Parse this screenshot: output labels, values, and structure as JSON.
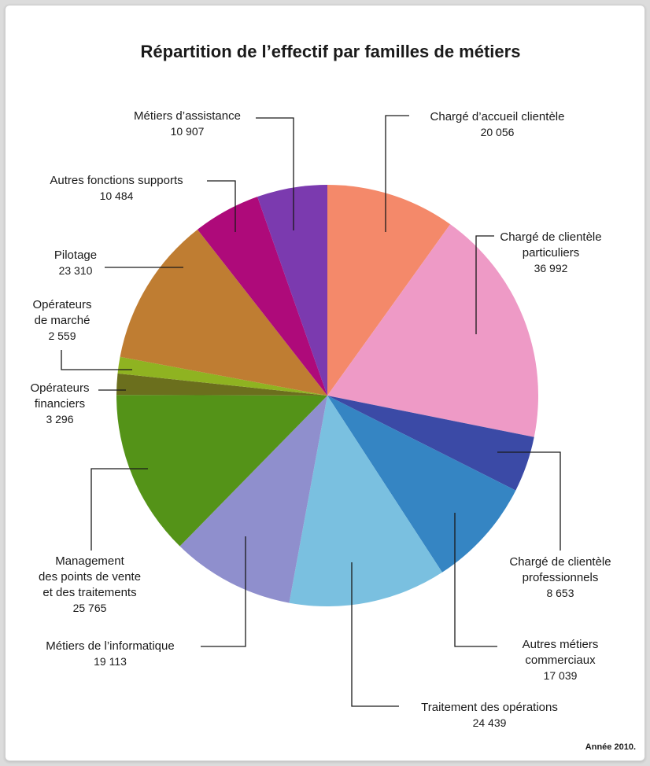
{
  "chart_data": {
    "type": "pie",
    "title": "Répartition de l’effectif par familles de métiers",
    "note": "Année 2010.",
    "slices": [
      {
        "label_lines": [
          "Chargé d’accueil clientèle"
        ],
        "value_text": "20 056",
        "value": 20056,
        "color": "#f4896a"
      },
      {
        "label_lines": [
          "Chargé de clientèle",
          "particuliers"
        ],
        "value_text": "36 992",
        "value": 36992,
        "color": "#ee9ac6"
      },
      {
        "label_lines": [
          "Chargé de clientèle",
          "professionnels"
        ],
        "value_text": "8 653",
        "value": 8653,
        "color": "#3b4aa6"
      },
      {
        "label_lines": [
          "Autres métiers",
          "commerciaux"
        ],
        "value_text": "17 039",
        "value": 17039,
        "color": "#3585c3"
      },
      {
        "label_lines": [
          "Traitement des opérations"
        ],
        "value_text": "24 439",
        "value": 24439,
        "color": "#7ac0e0"
      },
      {
        "label_lines": [
          "Métiers de l’informatique"
        ],
        "value_text": "19 113",
        "value": 19113,
        "color": "#8f8fcd"
      },
      {
        "label_lines": [
          "Management",
          "des points de vente",
          "et des traitements"
        ],
        "value_text": "25 765",
        "value": 25765,
        "color": "#549318"
      },
      {
        "label_lines": [
          "Opérateurs",
          "financiers"
        ],
        "value_text": "3 296",
        "value": 3296,
        "color": "#6b6f1d"
      },
      {
        "label_lines": [
          "Opérateurs",
          "de marché"
        ],
        "value_text": "2 559",
        "value": 2559,
        "color": "#8fb321"
      },
      {
        "label_lines": [
          "Pilotage"
        ],
        "value_text": "23 310",
        "value": 23310,
        "color": "#bf7d32"
      },
      {
        "label_lines": [
          "Autres fonctions supports"
        ],
        "value_text": "10 484",
        "value": 10484,
        "color": "#ae0a7a"
      },
      {
        "label_lines": [
          "Métiers d’assistance"
        ],
        "value_text": "10 907",
        "value": 10907,
        "color": "#7b3aaf"
      }
    ]
  }
}
